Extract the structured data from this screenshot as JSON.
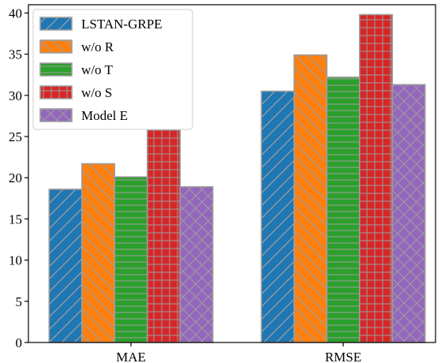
{
  "chart_data": {
    "type": "bar",
    "categories": [
      "MAE",
      "RMSE"
    ],
    "series": [
      {
        "name": "LSTAN-GRPE",
        "values": [
          18.6,
          30.5
        ],
        "color": "#1f77b4",
        "hatch": "diagonal"
      },
      {
        "name": "w/o R",
        "values": [
          21.7,
          34.9
        ],
        "color": "#ff7f0e",
        "hatch": "backslash"
      },
      {
        "name": "w/o T",
        "values": [
          20.1,
          32.2
        ],
        "color": "#2ca02c",
        "hatch": "horizontal"
      },
      {
        "name": "w/o S",
        "values": [
          25.8,
          39.8
        ],
        "color": "#d62728",
        "hatch": "grid"
      },
      {
        "name": "Model E",
        "values": [
          18.9,
          31.3
        ],
        "color": "#9467bd",
        "hatch": "crosshatch"
      }
    ],
    "yticks": [
      "0",
      "5",
      "10",
      "15",
      "20",
      "25",
      "30",
      "35",
      "40"
    ],
    "ylim": [
      0,
      41
    ],
    "title": "",
    "xlabel": "",
    "ylabel": "",
    "legend_position": "top-left",
    "grid": false
  }
}
